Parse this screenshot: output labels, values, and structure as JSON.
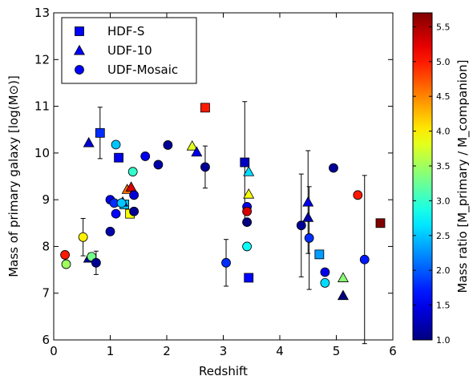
{
  "chart_data": {
    "type": "scatter",
    "xlabel": "Redshift",
    "ylabel": "Mass of primary galaxy [log(M⊙)]",
    "xlim": [
      0,
      6
    ],
    "ylim": [
      6,
      13
    ],
    "x_ticks": [
      "0",
      "1",
      "2",
      "3",
      "4",
      "5",
      "6"
    ],
    "y_ticks": [
      "6",
      "7",
      "8",
      "9",
      "10",
      "11",
      "12",
      "13"
    ],
    "grid": false,
    "legend_position": "top-left",
    "colorbar": {
      "label": "Mass ratio [M_primary / M_companion]",
      "range": [
        1.0,
        5.7
      ],
      "ticks": [
        "1.0",
        "1.5",
        "2.0",
        "2.5",
        "3.0",
        "3.5",
        "4.0",
        "4.5",
        "5.0",
        "5.5"
      ],
      "colormap": "jet"
    },
    "series": [
      {
        "name": "HDF-S",
        "marker": "square",
        "points": [
          {
            "x": 0.82,
            "y": 10.43,
            "ratio": 1.8,
            "err": [
              0.55,
              0.55
            ]
          },
          {
            "x": 1.15,
            "y": 9.9,
            "ratio": 1.5
          },
          {
            "x": 1.25,
            "y": 8.9,
            "ratio": 2.5
          },
          {
            "x": 1.35,
            "y": 8.7,
            "ratio": 3.9
          },
          {
            "x": 2.68,
            "y": 10.97,
            "ratio": 5.0
          },
          {
            "x": 3.38,
            "y": 9.8,
            "ratio": 1.3,
            "err": [
              1.3,
              1.3
            ]
          },
          {
            "x": 3.45,
            "y": 7.33,
            "ratio": 1.6
          },
          {
            "x": 4.7,
            "y": 7.83,
            "ratio": 2.3
          },
          {
            "x": 5.78,
            "y": 8.5,
            "ratio": 5.7
          }
        ]
      },
      {
        "name": "UDF-10",
        "marker": "triangle",
        "points": [
          {
            "x": 0.62,
            "y": 10.22,
            "ratio": 1.4
          },
          {
            "x": 0.62,
            "y": 7.75,
            "ratio": 1.2
          },
          {
            "x": 1.22,
            "y": 8.95,
            "ratio": 1.6
          },
          {
            "x": 1.3,
            "y": 9.22,
            "ratio": 4.6
          },
          {
            "x": 1.37,
            "y": 9.27,
            "ratio": 5.3
          },
          {
            "x": 2.45,
            "y": 10.15,
            "ratio": 3.8
          },
          {
            "x": 2.53,
            "y": 10.02,
            "ratio": 1.5
          },
          {
            "x": 3.45,
            "y": 9.6,
            "ratio": 2.6
          },
          {
            "x": 3.45,
            "y": 9.12,
            "ratio": 3.9
          },
          {
            "x": 4.5,
            "y": 8.95,
            "ratio": 1.5,
            "err": [
              1.1,
              1.1
            ]
          },
          {
            "x": 4.5,
            "y": 8.62,
            "ratio": 1.2
          },
          {
            "x": 5.12,
            "y": 7.33,
            "ratio": 3.4
          },
          {
            "x": 5.12,
            "y": 6.95,
            "ratio": 1.0
          }
        ]
      },
      {
        "name": "UDF-Mosaic",
        "marker": "circle",
        "points": [
          {
            "x": 0.2,
            "y": 7.82,
            "ratio": 5.0
          },
          {
            "x": 0.22,
            "y": 7.62,
            "ratio": 3.5
          },
          {
            "x": 0.52,
            "y": 8.2,
            "ratio": 4.0,
            "err": [
              0.4,
              0.4
            ]
          },
          {
            "x": 0.67,
            "y": 7.78,
            "ratio": 3.3
          },
          {
            "x": 0.75,
            "y": 7.65,
            "ratio": 1.1,
            "err": [
              0.25,
              0.25
            ]
          },
          {
            "x": 1.0,
            "y": 9.0,
            "ratio": 1.5
          },
          {
            "x": 1.0,
            "y": 8.32,
            "ratio": 1.2
          },
          {
            "x": 1.07,
            "y": 8.93,
            "ratio": 1.8
          },
          {
            "x": 1.1,
            "y": 10.18,
            "ratio": 2.5
          },
          {
            "x": 1.1,
            "y": 8.7,
            "ratio": 1.6
          },
          {
            "x": 1.2,
            "y": 8.93,
            "ratio": 2.5
          },
          {
            "x": 1.4,
            "y": 9.6,
            "ratio": 3.0
          },
          {
            "x": 1.42,
            "y": 9.1,
            "ratio": 1.4
          },
          {
            "x": 1.42,
            "y": 8.75,
            "ratio": 1.1
          },
          {
            "x": 1.62,
            "y": 9.93,
            "ratio": 1.5
          },
          {
            "x": 1.85,
            "y": 9.75,
            "ratio": 1.2
          },
          {
            "x": 2.02,
            "y": 10.17,
            "ratio": 1.1
          },
          {
            "x": 2.68,
            "y": 9.7,
            "ratio": 1.1,
            "err": [
              0.45,
              0.45
            ]
          },
          {
            "x": 3.05,
            "y": 7.65,
            "ratio": 1.8,
            "err": [
              0.5,
              0.5
            ]
          },
          {
            "x": 3.42,
            "y": 8.85,
            "ratio": 1.5
          },
          {
            "x": 3.42,
            "y": 8.75,
            "ratio": 5.3
          },
          {
            "x": 3.42,
            "y": 8.52,
            "ratio": 1.0
          },
          {
            "x": 3.42,
            "y": 8.0,
            "ratio": 2.8
          },
          {
            "x": 4.38,
            "y": 8.45,
            "ratio": 1.1,
            "err": [
              1.1,
              1.1
            ]
          },
          {
            "x": 4.52,
            "y": 8.18,
            "ratio": 1.8,
            "err": [
              1.1,
              1.1
            ]
          },
          {
            "x": 4.8,
            "y": 7.45,
            "ratio": 1.5
          },
          {
            "x": 4.8,
            "y": 7.22,
            "ratio": 2.6
          },
          {
            "x": 4.95,
            "y": 9.68,
            "ratio": 1.1
          },
          {
            "x": 5.38,
            "y": 9.1,
            "ratio": 5.0
          },
          {
            "x": 5.5,
            "y": 7.72,
            "ratio": 1.7,
            "err": [
              1.8,
              1.8
            ]
          }
        ]
      }
    ]
  }
}
